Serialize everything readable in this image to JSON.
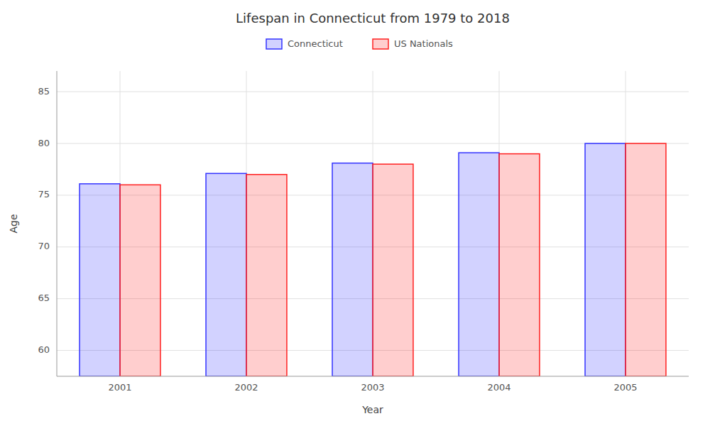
{
  "chart_data": {
    "type": "bar",
    "title": "Lifespan in Connecticut from 1979 to 2018",
    "x_label": "Year",
    "y_label": "Age",
    "categories": [
      "2001",
      "2002",
      "2003",
      "2004",
      "2005"
    ],
    "series": [
      {
        "name": "Connecticut",
        "color": "#3333ff",
        "values": [
          76.1,
          77.1,
          78.1,
          79.1,
          80.0
        ]
      },
      {
        "name": "US Nationals",
        "color": "#ff2020",
        "values": [
          76.0,
          77.0,
          78.0,
          79.0,
          80.0
        ]
      }
    ],
    "ylim": [
      57.5,
      87
    ],
    "yticks": [
      60,
      65,
      70,
      75,
      80,
      85
    ],
    "grid": true,
    "legend": "top"
  }
}
